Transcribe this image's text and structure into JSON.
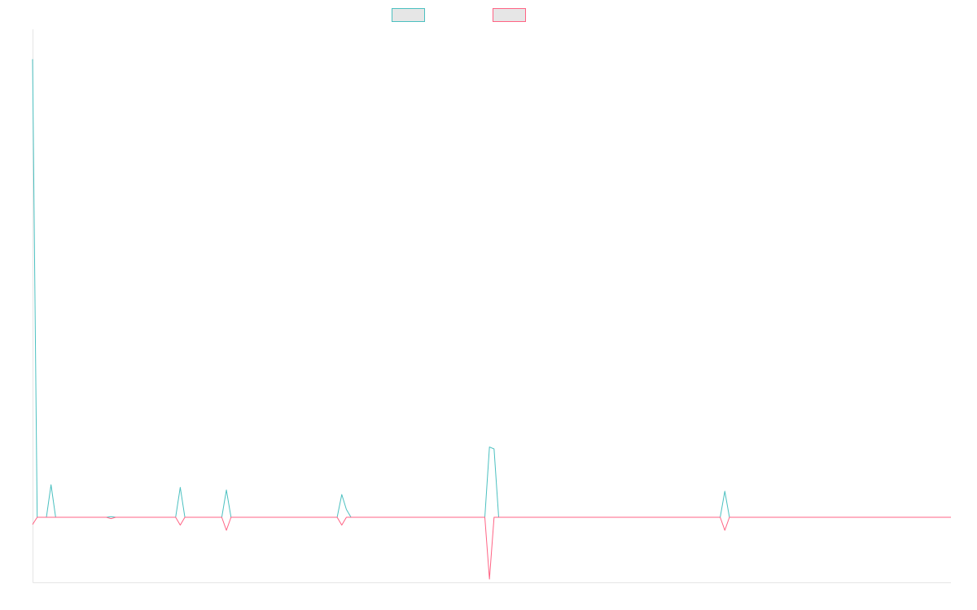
{
  "chart_data": {
    "type": "line",
    "title": "",
    "xlabel": "",
    "ylabel": "",
    "grid": false,
    "legend_position": "top-center",
    "x_count": 200,
    "ylim": [
      -10,
      75
    ],
    "baseline": 0,
    "series": [
      {
        "name": "",
        "color": "#4bc0c0",
        "values": [
          {
            "i": 0,
            "y": 70.4
          },
          {
            "i": 1,
            "y": 0
          },
          {
            "i": 3,
            "y": 0
          },
          {
            "i": 4,
            "y": 5
          },
          {
            "i": 5,
            "y": 0
          },
          {
            "i": 16,
            "y": 0
          },
          {
            "i": 17,
            "y": 0.1
          },
          {
            "i": 18,
            "y": 0
          },
          {
            "i": 31,
            "y": 0
          },
          {
            "i": 32,
            "y": 4.6
          },
          {
            "i": 33,
            "y": 0
          },
          {
            "i": 41,
            "y": 0
          },
          {
            "i": 42,
            "y": 4.2
          },
          {
            "i": 43,
            "y": 0
          },
          {
            "i": 66,
            "y": 0
          },
          {
            "i": 67,
            "y": 3.5
          },
          {
            "i": 68,
            "y": 1.2
          },
          {
            "i": 69,
            "y": 0
          },
          {
            "i": 98,
            "y": 0
          },
          {
            "i": 99,
            "y": 10.8
          },
          {
            "i": 100,
            "y": 10.5
          },
          {
            "i": 101,
            "y": 0
          },
          {
            "i": 149,
            "y": 0
          },
          {
            "i": 150,
            "y": 4
          },
          {
            "i": 151,
            "y": 0
          },
          {
            "i": 199,
            "y": 0
          }
        ]
      },
      {
        "name": "",
        "color": "#ff6384",
        "values": [
          {
            "i": 0,
            "y": -1.1
          },
          {
            "i": 1,
            "y": 0
          },
          {
            "i": 16,
            "y": 0
          },
          {
            "i": 17,
            "y": -0.2
          },
          {
            "i": 18,
            "y": 0
          },
          {
            "i": 31,
            "y": 0
          },
          {
            "i": 32,
            "y": -1.2
          },
          {
            "i": 33,
            "y": 0
          },
          {
            "i": 41,
            "y": 0
          },
          {
            "i": 42,
            "y": -2
          },
          {
            "i": 43,
            "y": 0
          },
          {
            "i": 66,
            "y": 0
          },
          {
            "i": 67,
            "y": -1.2
          },
          {
            "i": 68,
            "y": 0
          },
          {
            "i": 98,
            "y": 0
          },
          {
            "i": 99,
            "y": -9.5
          },
          {
            "i": 100,
            "y": 0
          },
          {
            "i": 149,
            "y": 0
          },
          {
            "i": 150,
            "y": -2
          },
          {
            "i": 151,
            "y": 0
          },
          {
            "i": 199,
            "y": 0
          }
        ]
      }
    ]
  }
}
